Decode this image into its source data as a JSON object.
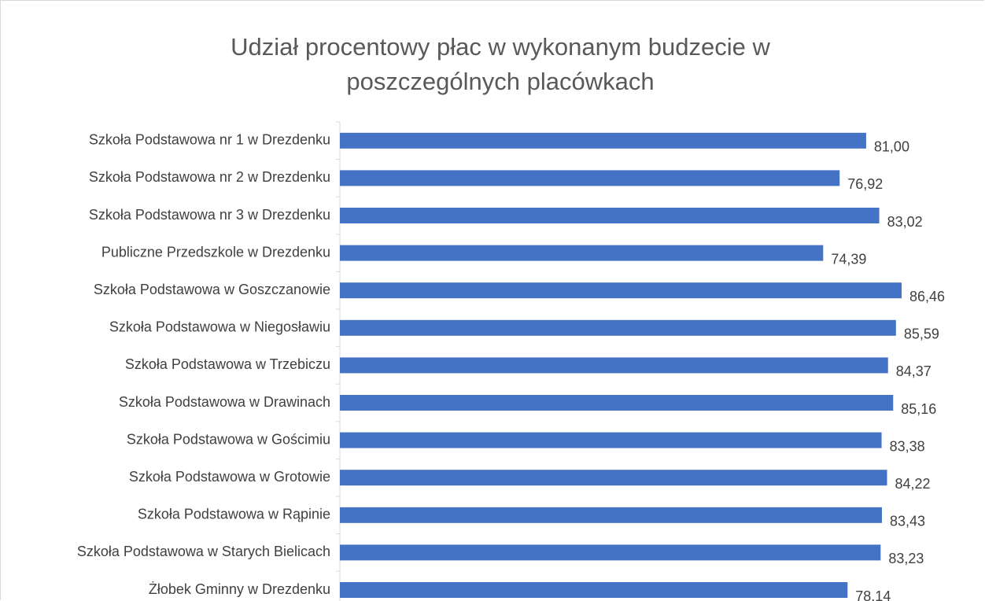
{
  "chart_data": {
    "type": "hbar",
    "title": "Udział procentowy płac w wykonanym budzecie w poszczególnych placówkach",
    "categories": [
      "Szkoła Podstawowa nr 1 w Drezdenku",
      "Szkoła Podstawowa nr 2 w Drezdenku",
      "Szkoła Podstawowa nr 3 w Drezdenku",
      "Publiczne Przedszkole w Drezdenku",
      "Szkoła Podstawowa w Goszczanowie",
      "Szkoła Podstawowa w Niegosławiu",
      "Szkoła Podstawowa w Trzebiczu",
      "Szkoła Podstawowa w Drawinach",
      "Szkoła Podstawowa w Gościmiu",
      "Szkoła Podstawowa w Grotowie",
      "Szkoła Podstawowa w Rąpinie",
      "Szkoła Podstawowa w Starych Bielicach",
      "Żłobek Gminny w Drezdenku"
    ],
    "values": [
      81.0,
      76.92,
      83.02,
      74.39,
      86.46,
      85.59,
      84.37,
      85.16,
      83.38,
      84.22,
      83.43,
      83.23,
      78.14
    ],
    "value_labels": [
      "81,00",
      "76,92",
      "83,02",
      "74,39",
      "86,46",
      "85,59",
      "84,37",
      "85,16",
      "83,38",
      "84,22",
      "83,43",
      "83,23",
      "78,14"
    ],
    "color": "#4472c4"
  }
}
